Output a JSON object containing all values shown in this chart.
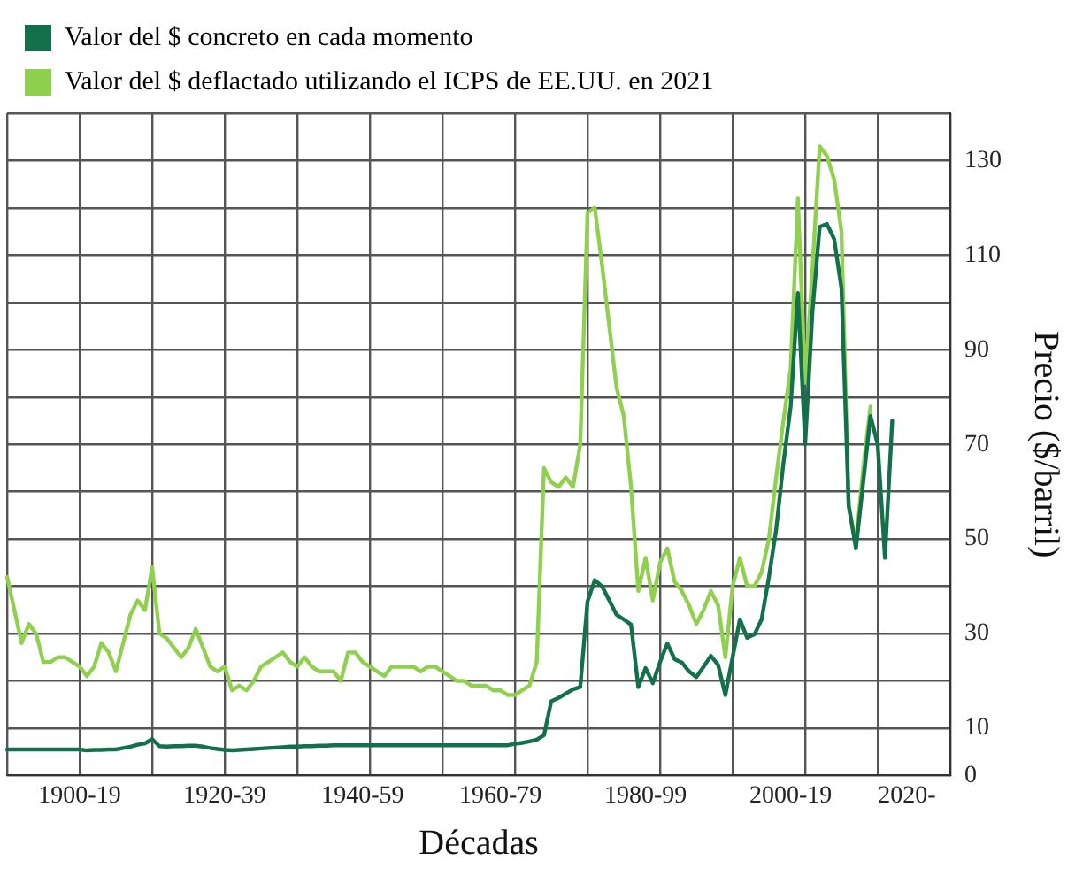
{
  "chart_data": {
    "type": "line",
    "xlabel": "Décadas",
    "ylabel": "Precio ($/barril)",
    "categories": [
      null,
      null,
      null,
      null,
      null,
      null,
      null,
      null,
      null,
      null,
      "1900-19",
      null,
      null,
      null,
      null,
      null,
      null,
      null,
      null,
      null,
      null,
      null,
      null,
      null,
      null,
      null,
      null,
      null,
      null,
      null,
      "1920-39",
      null,
      null,
      null,
      null,
      null,
      null,
      null,
      null,
      null,
      null,
      null,
      null,
      null,
      null,
      null,
      null,
      null,
      null,
      "1940-59",
      null,
      null,
      null,
      null,
      null,
      null,
      null,
      null,
      null,
      null,
      null,
      null,
      null,
      null,
      null,
      null,
      null,
      null,
      "1960-79",
      null,
      null,
      null,
      null,
      null,
      null,
      null,
      null,
      null,
      null,
      null,
      null,
      null,
      null,
      null,
      null,
      null,
      null,
      null,
      "1980-99",
      null,
      null,
      null,
      null,
      null,
      null,
      null,
      null,
      null,
      null,
      null,
      null,
      null,
      null,
      null,
      null,
      null,
      null,
      null,
      "2000-19",
      null,
      null,
      null,
      null,
      null,
      null,
      null,
      null,
      null,
      null,
      null,
      null,
      null,
      null,
      null,
      "2020-",
      null,
      null,
      null,
      null,
      null,
      null
    ],
    "ylim": [
      0,
      140
    ],
    "yticks": [
      0,
      10,
      {
        "value": 20,
        "label": null
      },
      30,
      {
        "value": 40,
        "label": null
      },
      50,
      {
        "value": 60,
        "label": null
      },
      70,
      {
        "value": 80,
        "label": null
      },
      90,
      {
        "value": 100,
        "label": null
      },
      110,
      {
        "value": 120,
        "label": null
      },
      130,
      {
        "value": 140,
        "label": null
      }
    ],
    "grid": true,
    "legend": "top left",
    "line_style": "solid",
    "series": [
      {
        "name": "Valor del $ concreto en cada momento",
        "color": "#12704a",
        "values": [
          5.5,
          5.5,
          5.5,
          5.5,
          5.5,
          5.5,
          5.5,
          5.5,
          5.5,
          5.5,
          5.5,
          5.3,
          5.4,
          5.4,
          5.5,
          5.5,
          5.8,
          6.1,
          6.5,
          6.8,
          7.7,
          6.2,
          6.1,
          6.2,
          6.2,
          6.3,
          6.3,
          6.1,
          5.8,
          5.6,
          5.4,
          5.3,
          5.4,
          5.5,
          5.6,
          5.7,
          5.8,
          5.9,
          6,
          6.1,
          6.1,
          6.2,
          6.2,
          6.3,
          6.3,
          6.4,
          6.4,
          6.4,
          6.4,
          6.4,
          6.4,
          6.4,
          6.4,
          6.4,
          6.4,
          6.4,
          6.4,
          6.4,
          6.4,
          6.4,
          6.4,
          6.4,
          6.4,
          6.4,
          6.4,
          6.4,
          6.4,
          6.4,
          6.4,
          6.4,
          6.7,
          6.9,
          7.2,
          7.6,
          8.5,
          15.7,
          16.4,
          17.3,
          18.2,
          18.7,
          36.8,
          41.3,
          40,
          37,
          34,
          33,
          31.9,
          18.7,
          22.7,
          19.5,
          24,
          27.9,
          24.6,
          23.9,
          22,
          20.8,
          23,
          25.3,
          23.4,
          17,
          25,
          33,
          29.1,
          29.8,
          33,
          41.9,
          52,
          66,
          78,
          102,
          70,
          98,
          116,
          116.6,
          113.4,
          103,
          57,
          48,
          62,
          76,
          70,
          46,
          75,
          null,
          null,
          null,
          null,
          null,
          null,
          null,
          null
        ]
      },
      {
        "name": "Valor del $ deflactado utilizando el ICPS de EE.UU. en 2021",
        "color": "#8fd14f",
        "values": [
          42,
          35,
          28,
          32,
          30,
          24,
          24,
          25,
          25,
          24,
          23,
          21,
          23,
          28,
          26,
          22,
          28,
          34,
          37,
          35,
          44,
          30,
          29,
          27,
          25,
          27,
          31,
          27,
          23,
          22,
          23,
          18,
          19,
          18,
          20,
          23,
          24,
          25,
          26,
          24,
          23,
          25,
          23,
          22,
          22,
          22,
          20,
          26,
          26,
          24,
          23,
          22,
          21,
          23,
          23,
          23,
          23,
          22,
          23,
          23,
          22,
          21,
          20,
          20,
          19,
          19,
          19,
          18,
          18,
          17,
          17,
          18,
          19,
          24,
          65,
          62,
          61,
          63,
          61,
          70,
          119,
          120,
          108,
          95,
          82,
          76,
          61,
          39,
          46,
          37,
          45,
          48,
          41,
          39,
          36,
          32,
          35,
          39,
          36,
          25,
          40,
          46,
          40,
          40,
          43,
          50,
          63,
          75,
          86,
          122,
          83,
          107,
          133,
          131,
          126,
          115,
          57,
          49,
          65,
          78,
          null,
          null,
          null,
          null,
          null,
          null,
          null,
          null,
          null,
          null,
          null
        ]
      }
    ]
  }
}
